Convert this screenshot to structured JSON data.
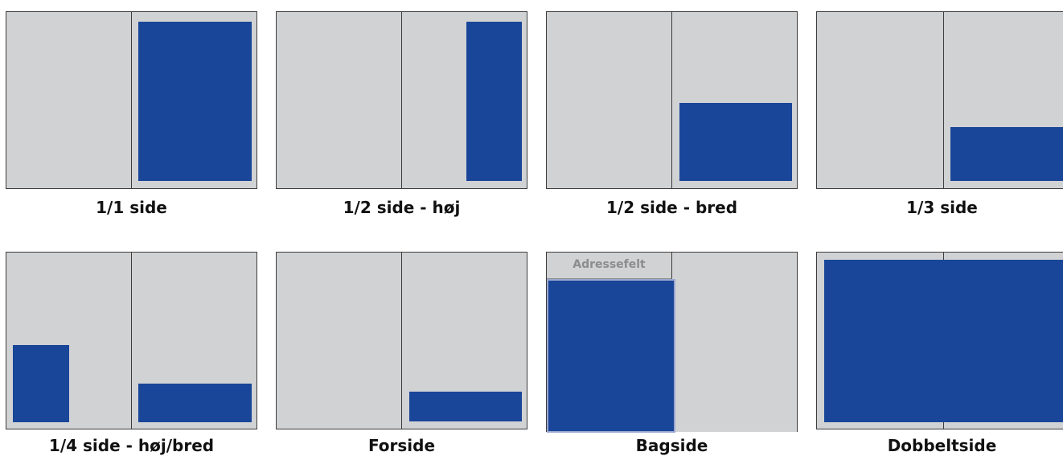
{
  "colors": {
    "page": "#d1d2d4",
    "ad": "#1a4699",
    "line": "#3c3c3c",
    "address_text": "#8c8c8c"
  },
  "formats": [
    {
      "id": "full",
      "label": "1/1 side"
    },
    {
      "id": "half-tall",
      "label": "1/2 side - høj"
    },
    {
      "id": "half-wide",
      "label": "1/2 side - bred"
    },
    {
      "id": "third",
      "label": "1/3 side"
    },
    {
      "id": "quarter",
      "label": "1/4 side - høj/bred"
    },
    {
      "id": "front",
      "label": "Forside"
    },
    {
      "id": "back",
      "label": "Bagside",
      "address_label": "Adressefelt"
    },
    {
      "id": "double",
      "label": "Dobbeltside"
    }
  ]
}
